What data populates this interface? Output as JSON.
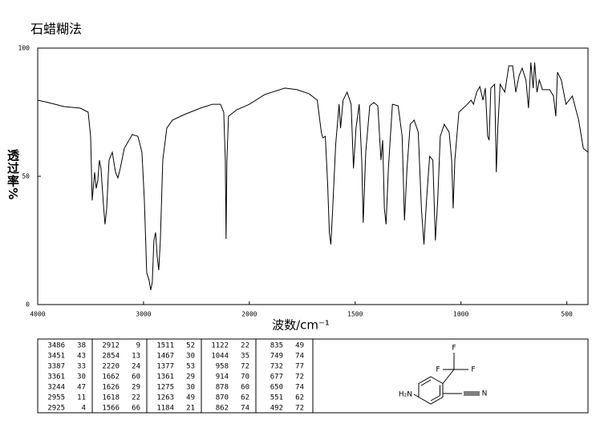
{
  "chart_data": {
    "type": "line",
    "title": "石蜡糊法",
    "x_label": "波数/cm⁻¹",
    "y_label": "透过率%",
    "x": [
      4000,
      3902,
      3750,
      3598,
      3523,
      3500,
      3485,
      3462,
      3447,
      3432,
      3417,
      3402,
      3379,
      3364,
      3348,
      3326,
      3295,
      3265,
      3242,
      3220,
      3182,
      3106,
      3053,
      3015,
      2992,
      2970,
      2947,
      2932,
      2917,
      2902,
      2886,
      2871,
      2856,
      2841,
      2818,
      2780,
      2727,
      2614,
      2462,
      2348,
      2273,
      2242,
      2227,
      2220,
      2212,
      2197,
      2121,
      2000,
      1927,
      1832,
      1775,
      1718,
      1679,
      1660,
      1653,
      1641,
      1630,
      1622,
      1615,
      1607,
      1592,
      1576,
      1569,
      1557,
      1538,
      1519,
      1508,
      1496,
      1481,
      1469,
      1462,
      1450,
      1431,
      1412,
      1393,
      1378,
      1370,
      1362,
      1354,
      1343,
      1324,
      1297,
      1278,
      1267,
      1255,
      1240,
      1221,
      1202,
      1187,
      1175,
      1163,
      1148,
      1133,
      1121,
      1110,
      1098,
      1079,
      1056,
      1044,
      1037,
      1029,
      1010,
      970,
      952,
      941,
      926,
      911,
      896,
      885,
      874,
      867,
      859,
      841,
      833,
      826,
      815,
      793,
      774,
      756,
      741,
      726,
      711,
      693,
      681,
      670,
      659,
      652,
      641,
      630,
      615,
      581,
      563,
      552,
      544,
      526,
      504,
      474,
      444,
      422,
      400
    ],
    "series": [
      {
        "color": "#000000",
        "values": [
          79.7,
          78.8,
          77.2,
          76.6,
          75,
          65.6,
          40.6,
          51.6,
          45.3,
          48.4,
          56.3,
          53.1,
          39.1,
          31.3,
          37.5,
          56.3,
          59.4,
          51.6,
          49.4,
          53.1,
          60.9,
          66.3,
          65.6,
          59.4,
          40.6,
          12.5,
          9.4,
          5.6,
          8.8,
          25,
          28.1,
          18.8,
          13.4,
          25,
          56.3,
          68.8,
          71.9,
          74.1,
          76.6,
          78.1,
          78.1,
          75,
          56.3,
          25.6,
          56.3,
          73.4,
          75.9,
          78.1,
          81.9,
          84.4,
          83.8,
          82.2,
          79.7,
          67.2,
          65,
          65.6,
          46.9,
          28.1,
          23.4,
          35.9,
          62.5,
          78.1,
          68.8,
          79.7,
          82.8,
          78.1,
          53.1,
          68.8,
          78.1,
          56.3,
          31.9,
          59.4,
          77.5,
          78.8,
          77.5,
          56.3,
          64.1,
          37.5,
          31.3,
          53.1,
          78.1,
          77.5,
          65.6,
          32.8,
          53.1,
          70.3,
          71.9,
          67.2,
          37.5,
          23.4,
          40.6,
          57.8,
          56.3,
          25,
          40.6,
          65.6,
          70.3,
          67.2,
          56.3,
          37.5,
          56.3,
          75,
          78.1,
          79.7,
          78.1,
          82.8,
          85,
          79.7,
          84.4,
          65.6,
          64.1,
          84.4,
          85.9,
          51.6,
          68.8,
          85.9,
          82.8,
          93.1,
          93.1,
          82.8,
          89.1,
          92.2,
          87.5,
          76.6,
          94.4,
          84.4,
          94.4,
          82.8,
          87.5,
          83.8,
          83.8,
          81.3,
          73.4,
          90.6,
          87.5,
          78.1,
          81.3,
          71.9,
          60.9,
          59.4
        ]
      }
    ],
    "xlim": [
      4000,
      400
    ],
    "xticks": [
      4000,
      3000,
      2000,
      1500,
      1000,
      500
    ],
    "ylim": [
      0,
      100
    ],
    "yticks": [
      0,
      50,
      100
    ]
  },
  "peak_table": [
    [
      [
        "3486",
        "38"
      ],
      [
        "3451",
        "43"
      ],
      [
        "3387",
        "33"
      ],
      [
        "3361",
        "30"
      ],
      [
        "3244",
        "47"
      ],
      [
        "2955",
        "11"
      ],
      [
        "2925",
        "4"
      ]
    ],
    [
      [
        "2912",
        "9"
      ],
      [
        "2854",
        "13"
      ],
      [
        "2220",
        "24"
      ],
      [
        "1662",
        "60"
      ],
      [
        "1626",
        "29"
      ],
      [
        "1618",
        "22"
      ],
      [
        "1566",
        "66"
      ]
    ],
    [
      [
        "1511",
        "52"
      ],
      [
        "1467",
        "30"
      ],
      [
        "1377",
        "53"
      ],
      [
        "1361",
        "29"
      ],
      [
        "1275",
        "30"
      ],
      [
        "1263",
        "49"
      ],
      [
        "1184",
        "21"
      ]
    ],
    [
      [
        "1122",
        "22"
      ],
      [
        "1044",
        "35"
      ],
      [
        "958",
        "72"
      ],
      [
        "914",
        "70"
      ],
      [
        "878",
        "60"
      ],
      [
        "870",
        "62"
      ],
      [
        "862",
        "74"
      ]
    ],
    [
      [
        "835",
        "49"
      ],
      [
        "749",
        "74"
      ],
      [
        "732",
        "77"
      ],
      [
        "677",
        "72"
      ],
      [
        "650",
        "74"
      ],
      [
        "551",
        "62"
      ],
      [
        "492",
        "72"
      ]
    ]
  ],
  "structure": {
    "labels": [
      "F",
      "F",
      "F",
      "H₂N",
      "N"
    ]
  }
}
